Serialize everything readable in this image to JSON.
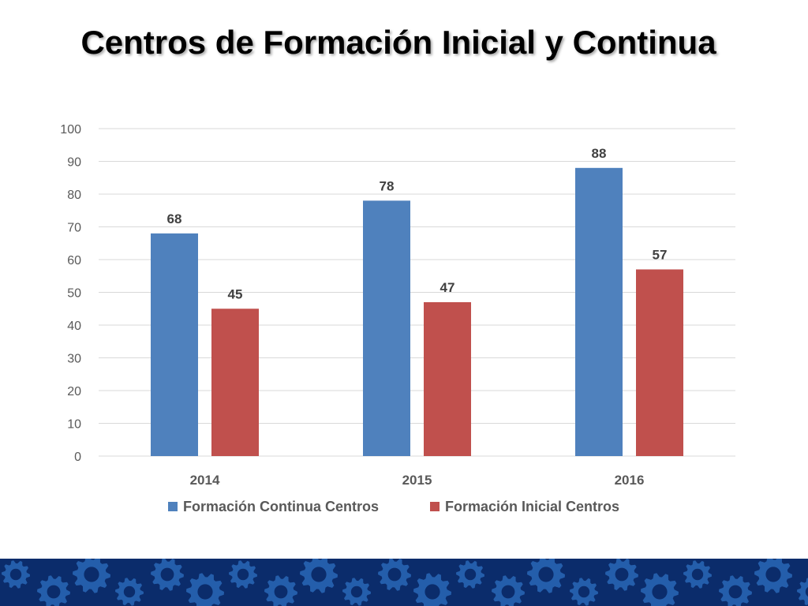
{
  "slide": {
    "title": "Centros de Formación Inicial y Continua"
  },
  "chart_data": {
    "type": "bar",
    "categories": [
      "2014",
      "2015",
      "2016"
    ],
    "series": [
      {
        "name": "Formación Continua Centros",
        "values": [
          68,
          78,
          88
        ],
        "color": "#4F81BD"
      },
      {
        "name": "Formación Inicial Centros",
        "values": [
          45,
          47,
          57
        ],
        "color": "#C0504D"
      }
    ],
    "ylim": [
      0,
      100
    ],
    "yticks": [
      0,
      10,
      20,
      30,
      40,
      50,
      60,
      70,
      80,
      90,
      100
    ],
    "grid": true,
    "legend_position": "bottom",
    "data_labels": true
  },
  "footer": {
    "band_color": "#0B2C6B",
    "gear_color": "#2E6FC0",
    "gear_icon": "gear-icon"
  }
}
